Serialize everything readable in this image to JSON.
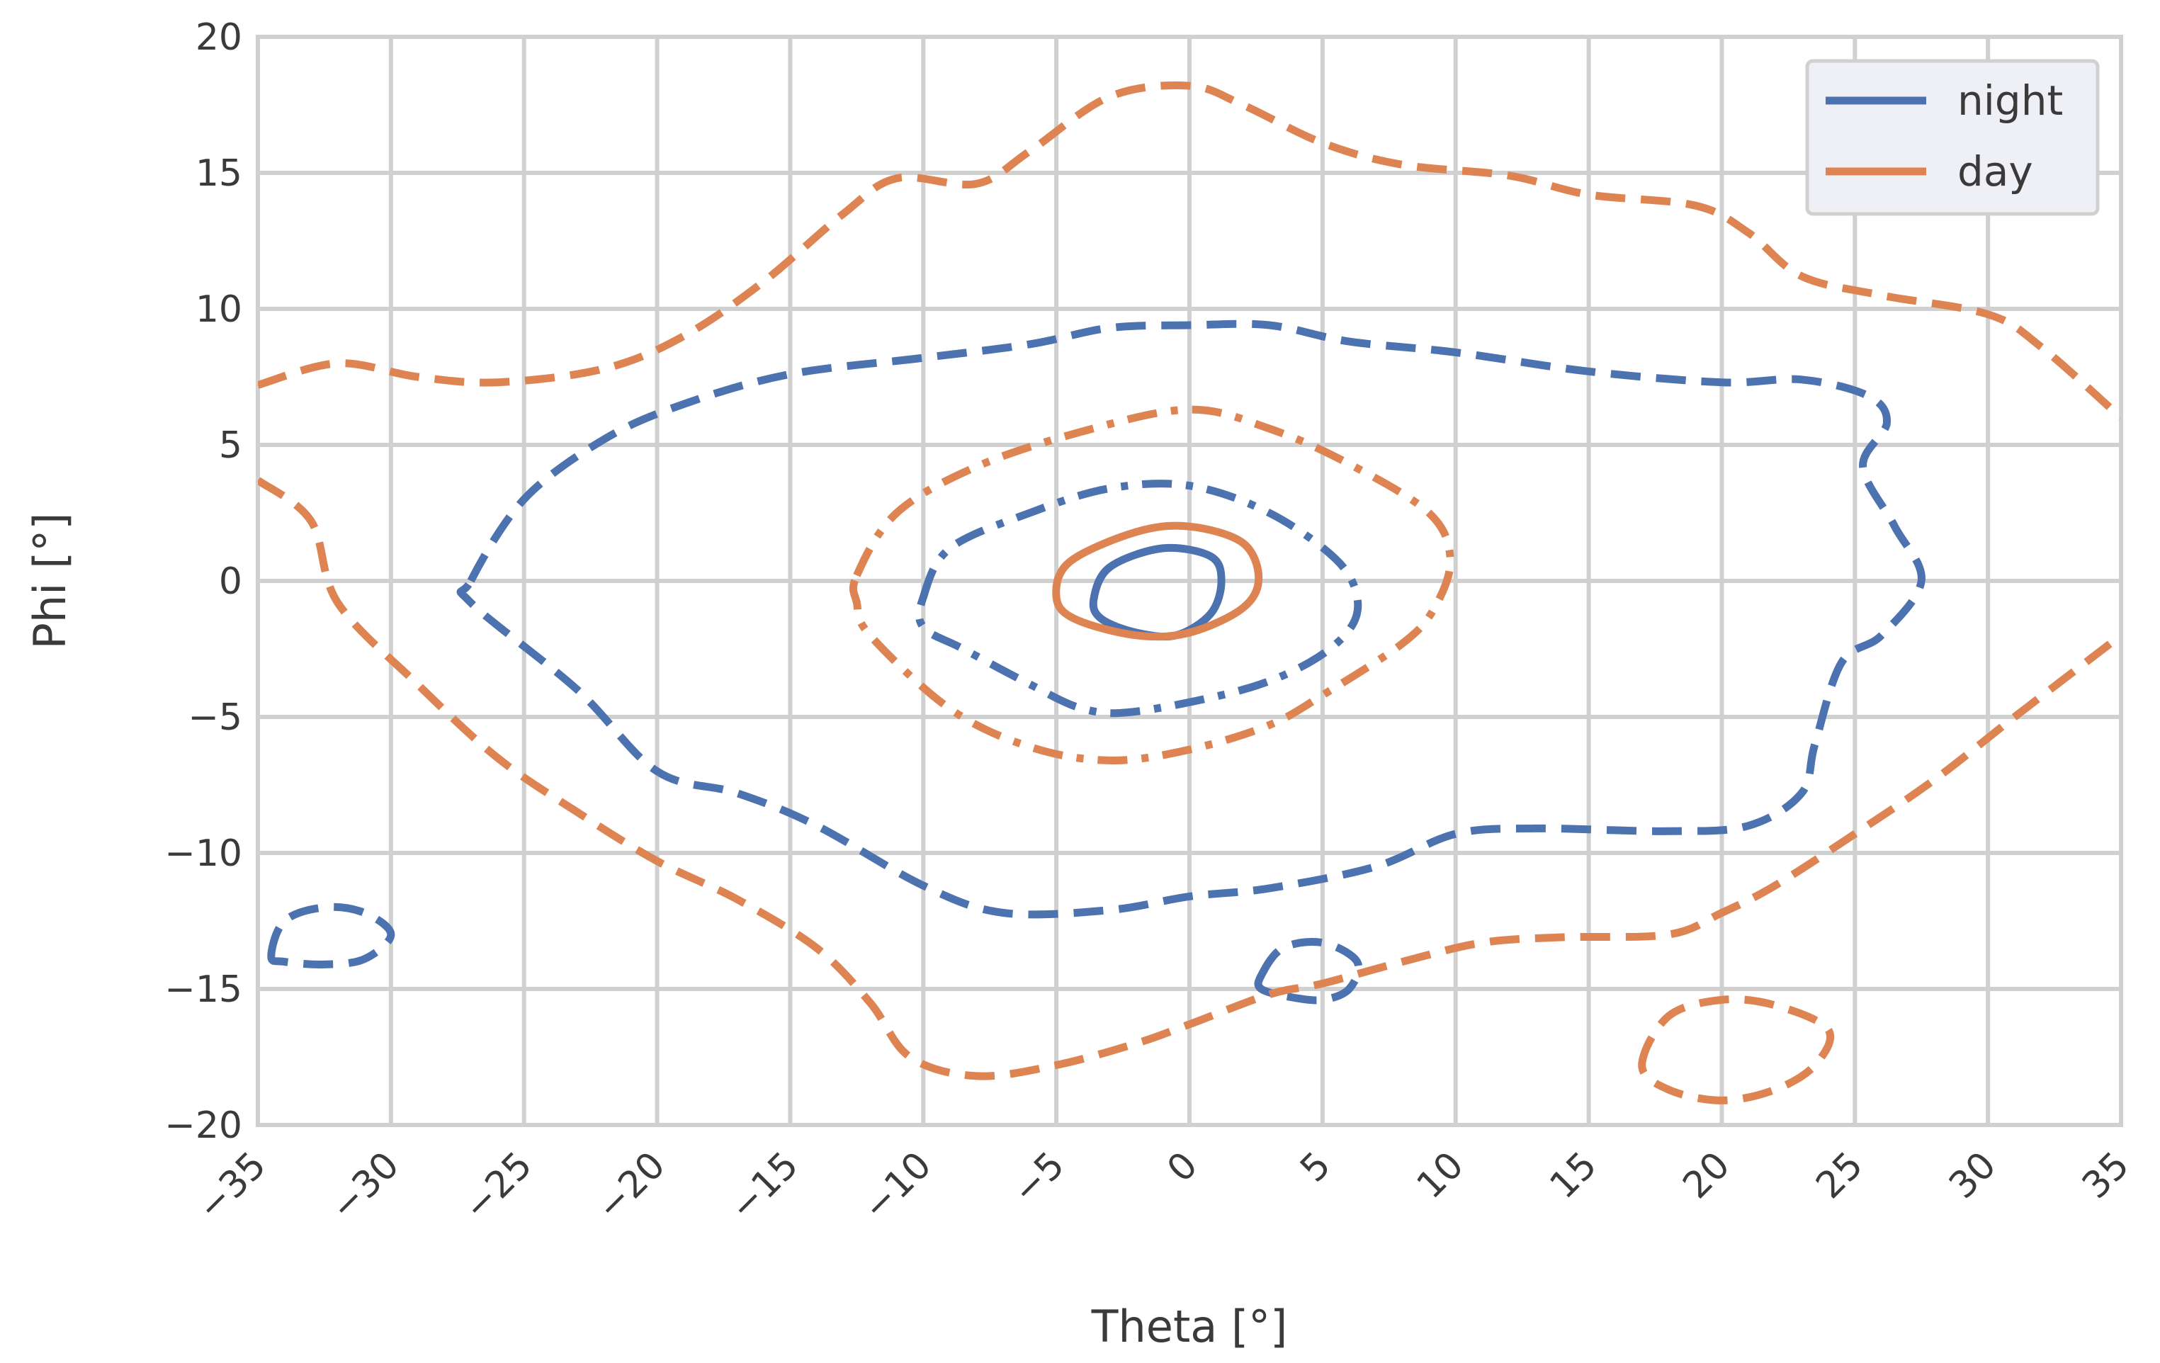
{
  "chart_data": {
    "type": "line",
    "subtype": "kde-contour",
    "xlabel": "Theta [°]",
    "ylabel": "Phi [°]",
    "xlim": [
      -35,
      35
    ],
    "ylim": [
      -20,
      20
    ],
    "xticks": [
      -35,
      -30,
      -25,
      -20,
      -15,
      -10,
      -5,
      0,
      5,
      10,
      15,
      20,
      25,
      30,
      35
    ],
    "yticks": [
      -20,
      -15,
      -10,
      -5,
      0,
      5,
      10,
      15,
      20
    ],
    "xtick_labels": [
      "−35",
      "−30",
      "−25",
      "−20",
      "−15",
      "−10",
      "−5",
      "0",
      "5",
      "10",
      "15",
      "20",
      "25",
      "30",
      "35"
    ],
    "ytick_labels": [
      "−20",
      "−15",
      "−10",
      "−5",
      "0",
      "5",
      "10",
      "15",
      "20"
    ],
    "grid": true,
    "legend": {
      "placement": "top-right",
      "entries": [
        {
          "label": "night",
          "color": "#4c72b0"
        },
        {
          "label": "day",
          "color": "#dd8452"
        }
      ]
    },
    "series": [
      {
        "name": "night",
        "color": "#4c72b0",
        "contours": [
          {
            "style": "dashed",
            "closed": true,
            "points": [
              [
                -27,
                0
              ],
              [
                -25,
                3
              ],
              [
                -22,
                5.2
              ],
              [
                -19,
                6.5
              ],
              [
                -15,
                7.6
              ],
              [
                -10,
                8.2
              ],
              [
                -6,
                8.7
              ],
              [
                -3,
                9.3
              ],
              [
                0,
                9.4
              ],
              [
                3,
                9.4
              ],
              [
                6,
                8.8
              ],
              [
                10,
                8.4
              ],
              [
                15,
                7.7
              ],
              [
                20,
                7.3
              ],
              [
                23,
                7.4
              ],
              [
                25.5,
                6.8
              ],
              [
                26.2,
                5.8
              ],
              [
                25.3,
                4.2
              ],
              [
                26.5,
                2
              ],
              [
                27.5,
                0
              ],
              [
                26,
                -2
              ],
              [
                24.5,
                -3
              ],
              [
                23.5,
                -6
              ],
              [
                23,
                -7.8
              ],
              [
                21,
                -9
              ],
              [
                18,
                -9.2
              ],
              [
                13,
                -9.1
              ],
              [
                10,
                -9.3
              ],
              [
                7,
                -10.5
              ],
              [
                3,
                -11.3
              ],
              [
                0,
                -11.6
              ],
              [
                -3,
                -12.1
              ],
              [
                -7,
                -12.2
              ],
              [
                -10,
                -11.2
              ],
              [
                -14,
                -9
              ],
              [
                -17,
                -7.8
              ],
              [
                -20,
                -7
              ],
              [
                -23,
                -4
              ],
              [
                -27,
                -0.8
              ]
            ]
          },
          {
            "style": "dashed",
            "closed": true,
            "points": [
              [
                -34.5,
                -13.8
              ],
              [
                -34,
                -12.5
              ],
              [
                -32.5,
                -12
              ],
              [
                -31,
                -12.2
              ],
              [
                -30,
                -13
              ],
              [
                -31,
                -13.9
              ],
              [
                -32.5,
                -14.1
              ],
              [
                -34,
                -14
              ]
            ]
          },
          {
            "style": "dashed",
            "closed": true,
            "points": [
              [
                2.7,
                -14.5
              ],
              [
                3.5,
                -13.5
              ],
              [
                5,
                -13.3
              ],
              [
                6.3,
                -14
              ],
              [
                6,
                -15
              ],
              [
                5,
                -15.4
              ],
              [
                3.8,
                -15.3
              ],
              [
                2.7,
                -15
              ]
            ]
          },
          {
            "style": "dashdot",
            "closed": true,
            "points": [
              [
                -10,
                -0.6
              ],
              [
                -9,
                1.2
              ],
              [
                -6,
                2.5
              ],
              [
                -3,
                3.4
              ],
              [
                0,
                3.5
              ],
              [
                3,
                2.5
              ],
              [
                5.5,
                0.8
              ],
              [
                6.3,
                -0.6
              ],
              [
                6,
                -1.8
              ],
              [
                4.5,
                -3
              ],
              [
                2,
                -4
              ],
              [
                -2,
                -4.8
              ],
              [
                -4,
                -4.7
              ],
              [
                -6,
                -3.8
              ],
              [
                -8.5,
                -2.5
              ],
              [
                -10,
                -1.7
              ]
            ]
          },
          {
            "style": "solid",
            "closed": true,
            "points": [
              [
                -3.6,
                -0.7
              ],
              [
                -3,
                0.5
              ],
              [
                -1,
                1.2
              ],
              [
                0.8,
                0.9
              ],
              [
                1.2,
                0
              ],
              [
                0.8,
                -1.2
              ],
              [
                -0.5,
                -2
              ],
              [
                -2,
                -1.9
              ],
              [
                -3.3,
                -1.4
              ]
            ]
          }
        ]
      },
      {
        "name": "day",
        "color": "#dd8452",
        "contours": [
          {
            "style": "dashed",
            "closed": false,
            "points": [
              [
                -35,
                7.2
              ],
              [
                -32,
                8
              ],
              [
                -29,
                7.5
              ],
              [
                -26,
                7.3
              ],
              [
                -22,
                7.8
              ],
              [
                -19,
                9
              ],
              [
                -16,
                11
              ],
              [
                -13,
                13.5
              ],
              [
                -11,
                14.8
              ],
              [
                -8,
                14.6
              ],
              [
                -6,
                15.8
              ],
              [
                -3,
                17.8
              ],
              [
                0,
                18.2
              ],
              [
                2,
                17.5
              ],
              [
                5,
                16.1
              ],
              [
                8,
                15.3
              ],
              [
                12,
                14.9
              ],
              [
                15,
                14.2
              ],
              [
                19,
                13.8
              ],
              [
                21,
                12.8
              ],
              [
                23,
                11.2
              ],
              [
                26,
                10.5
              ],
              [
                30,
                9.8
              ],
              [
                32,
                8.6
              ],
              [
                35,
                6
              ]
            ]
          },
          {
            "style": "dashed",
            "closed": false,
            "points": [
              [
                -35,
                3.7
              ],
              [
                -33,
                2.2
              ],
              [
                -32,
                -0.8
              ],
              [
                -29,
                -3.8
              ],
              [
                -26,
                -6.5
              ],
              [
                -23,
                -8.5
              ],
              [
                -20,
                -10.3
              ],
              [
                -17,
                -11.7
              ],
              [
                -14,
                -13.5
              ],
              [
                -12,
                -15.5
              ],
              [
                -10.5,
                -17.5
              ],
              [
                -8,
                -18.2
              ],
              [
                -5,
                -17.8
              ],
              [
                -2,
                -17
              ],
              [
                0,
                -16.3
              ],
              [
                3,
                -15.2
              ],
              [
                5,
                -14.8
              ],
              [
                8,
                -14
              ],
              [
                11,
                -13.3
              ],
              [
                14,
                -13.1
              ],
              [
                18,
                -13
              ],
              [
                20,
                -12.2
              ],
              [
                22,
                -11.2
              ],
              [
                25,
                -9.3
              ],
              [
                28,
                -7.3
              ],
              [
                31,
                -5
              ],
              [
                35,
                -2
              ]
            ]
          },
          {
            "style": "dashed",
            "closed": true,
            "points": [
              [
                17,
                -17.8
              ],
              [
                18,
                -16
              ],
              [
                20,
                -15.4
              ],
              [
                22,
                -15.6
              ],
              [
                24,
                -16.5
              ],
              [
                23.5,
                -17.8
              ],
              [
                22,
                -18.7
              ],
              [
                20,
                -19.1
              ],
              [
                18,
                -18.7
              ]
            ]
          },
          {
            "style": "dashdot",
            "closed": true,
            "points": [
              [
                -12.5,
                0.2
              ],
              [
                -11,
                2.5
              ],
              [
                -8,
                4.2
              ],
              [
                -4,
                5.5
              ],
              [
                0,
                6.3
              ],
              [
                3,
                5.6
              ],
              [
                6,
                4.3
              ],
              [
                9,
                2.5
              ],
              [
                9.8,
                0.8
              ],
              [
                9.2,
                -1
              ],
              [
                8,
                -2.3
              ],
              [
                5,
                -4.2
              ],
              [
                3,
                -5.3
              ],
              [
                0,
                -6.2
              ],
              [
                -3,
                -6.6
              ],
              [
                -6,
                -6.1
              ],
              [
                -9,
                -4.7
              ],
              [
                -12,
                -2
              ],
              [
                -12.5,
                -0.8
              ]
            ]
          },
          {
            "style": "solid",
            "closed": true,
            "points": [
              [
                -5,
                -0.6
              ],
              [
                -4.5,
                0.7
              ],
              [
                -2,
                1.8
              ],
              [
                0,
                2
              ],
              [
                2,
                1.4
              ],
              [
                2.6,
                0.1
              ],
              [
                2,
                -1
              ],
              [
                0,
                -1.9
              ],
              [
                -2,
                -2
              ],
              [
                -4.3,
                -1.4
              ]
            ]
          }
        ]
      }
    ]
  }
}
